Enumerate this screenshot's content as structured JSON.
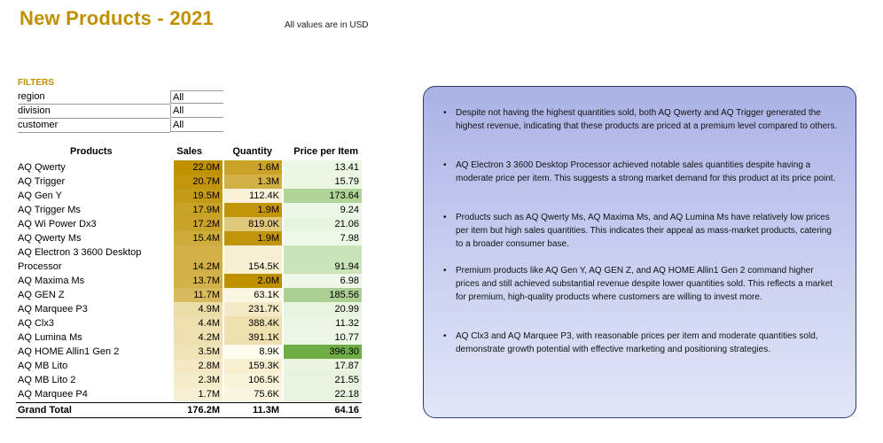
{
  "title": "New Products - 2021",
  "note": "All values are in USD",
  "filters": {
    "heading": "FILTERS",
    "rows": [
      {
        "label": "region",
        "value": "All"
      },
      {
        "label": "division",
        "value": "All"
      },
      {
        "label": "customer",
        "value": "All"
      }
    ]
  },
  "table": {
    "headers": {
      "products": "Products",
      "sales": "Sales",
      "quantity": "Quantity",
      "price": "Price per Item"
    },
    "rows": [
      {
        "name": "AQ Qwerty",
        "sales": "22.0M",
        "quantity": "1.6M",
        "price": "13.41"
      },
      {
        "name": "AQ Trigger",
        "sales": "20.7M",
        "quantity": "1.3M",
        "price": "15.79"
      },
      {
        "name": "AQ Gen Y",
        "sales": "19.5M",
        "quantity": "112.4K",
        "price": "173.64"
      },
      {
        "name": "AQ Trigger Ms",
        "sales": "17.9M",
        "quantity": "1.9M",
        "price": "9.24"
      },
      {
        "name": "AQ Wi Power Dx3",
        "sales": "17.2M",
        "quantity": "819.0K",
        "price": "21.06"
      },
      {
        "name": "AQ Qwerty Ms",
        "sales": "15.4M",
        "quantity": "1.9M",
        "price": "7.98"
      },
      {
        "name": "AQ Electron 3 3600 Desktop Processor",
        "sales": "14.2M",
        "quantity": "154.5K",
        "price": "91.94"
      },
      {
        "name": "AQ Maxima Ms",
        "sales": "13.7M",
        "quantity": "2.0M",
        "price": "6.98"
      },
      {
        "name": "AQ GEN Z",
        "sales": "11.7M",
        "quantity": "63.1K",
        "price": "185.56"
      },
      {
        "name": "AQ Marquee P3",
        "sales": "4.9M",
        "quantity": "231.7K",
        "price": "20.99"
      },
      {
        "name": "AQ Clx3",
        "sales": "4.4M",
        "quantity": "388.4K",
        "price": "11.32"
      },
      {
        "name": "AQ Lumina Ms",
        "sales": "4.2M",
        "quantity": "391.1K",
        "price": "10.77"
      },
      {
        "name": "AQ HOME Allin1 Gen 2",
        "sales": "3.5M",
        "quantity": "8.9K",
        "price": "396.30"
      },
      {
        "name": "AQ MB Lito",
        "sales": "2.8M",
        "quantity": "159.3K",
        "price": "17.87"
      },
      {
        "name": "AQ MB Lito 2",
        "sales": "2.3M",
        "quantity": "106.5K",
        "price": "21.55"
      },
      {
        "name": "AQ Marquee P4",
        "sales": "1.7M",
        "quantity": "75.6K",
        "price": "22.18"
      }
    ],
    "total": {
      "name": "Grand Total",
      "sales": "176.2M",
      "quantity": "11.3M",
      "price": "64.16"
    }
  },
  "insights": [
    "Despite not having the highest quantities sold, both AQ Qwerty and AQ Trigger generated the highest revenue, indicating that these products are priced at a premium level compared to others.",
    "AQ Electron 3 3600 Desktop Processor achieved notable sales quantities despite having a moderate price per item. This suggests a strong market demand for this product at its price point.",
    "Products such as AQ Qwerty Ms, AQ Maxima Ms, and AQ Lumina Ms have relatively low prices per item but high sales quantities. This indicates their appeal as mass-market products, catering to a broader consumer base.",
    "Premium products like AQ Gen Y, AQ GEN Z, and AQ HOME Allin1 Gen 2 command higher prices and still achieved substantial revenue despite lower quantities sold. This reflects a market for premium, high-quality products where customers are willing to invest more.",
    "AQ Clx3 and AQ Marquee P3, with reasonable prices per item and moderate quantities sold, demonstrate growth potential with effective marketing and positioning strategies."
  ],
  "colors": {
    "title": "#bf9000",
    "gold_scale_high": "#bf9000",
    "gold_scale_low": "#fffdf0",
    "green_scale_high": "#70ad47",
    "green_scale_low": "#f4fbef",
    "panel_border": "#2b3a7a"
  }
}
